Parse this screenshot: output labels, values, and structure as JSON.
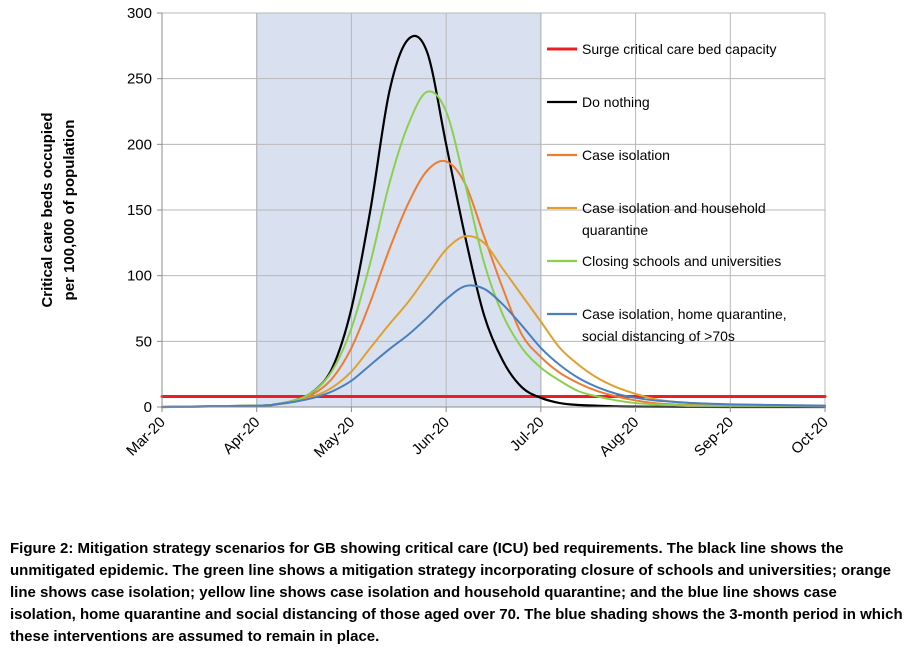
{
  "chart_data": {
    "type": "line",
    "title": "",
    "xlabel": "",
    "ylabel": [
      "Critical care beds occupied",
      "per 100,000 of population"
    ],
    "ylim": [
      0,
      300
    ],
    "yticks": [
      0,
      50,
      100,
      150,
      200,
      250,
      300
    ],
    "xlim": [
      0,
      7
    ],
    "categories": [
      "Mar-20",
      "Apr-20",
      "May-20",
      "Jun-20",
      "Jul-20",
      "Aug-20",
      "Sep-20",
      "Oct-20"
    ],
    "grid": true,
    "shaded_region": {
      "from": 1,
      "to": 4,
      "color": "#d9e1f0"
    },
    "series": [
      {
        "name": "Surge critical care bed capacity",
        "color": "#ee1c25",
        "width": 3,
        "x": [
          0,
          7
        ],
        "y": [
          8,
          8
        ]
      },
      {
        "name": "Do nothing",
        "color": "#000000",
        "width": 2.2,
        "x": [
          0,
          1,
          1.2,
          1.4,
          1.6,
          1.8,
          2.0,
          2.2,
          2.4,
          2.6,
          2.8,
          3.0,
          3.2,
          3.4,
          3.6,
          3.8,
          4.0,
          4.2,
          4.4,
          4.6,
          4.8,
          5.0,
          5.5,
          6.0,
          7.0
        ],
        "y": [
          0,
          1,
          2,
          5,
          12,
          30,
          75,
          150,
          240,
          280,
          270,
          200,
          130,
          70,
          35,
          15,
          7,
          3,
          1.5,
          1,
          0.5,
          0.3,
          0.1,
          0,
          0
        ]
      },
      {
        "name": "Case isolation",
        "color": "#ed7d31",
        "width": 2,
        "x": [
          0,
          1,
          1.2,
          1.4,
          1.6,
          1.8,
          2.0,
          2.2,
          2.4,
          2.6,
          2.8,
          3.0,
          3.2,
          3.4,
          3.6,
          3.8,
          4.0,
          4.2,
          4.4,
          4.6,
          4.8,
          5.0,
          5.2,
          5.4,
          5.6,
          5.8,
          6.0,
          6.5,
          7.0
        ],
        "y": [
          0,
          1,
          2,
          5,
          10,
          22,
          45,
          80,
          120,
          155,
          180,
          187,
          170,
          130,
          90,
          55,
          38,
          26,
          18,
          12,
          8,
          5,
          3,
          2,
          1.5,
          1,
          1,
          0.5,
          0.3
        ]
      },
      {
        "name": "Case isolation and household quarantine",
        "color": "#e0a030",
        "width": 2,
        "x": [
          0,
          1,
          1.2,
          1.4,
          1.6,
          1.8,
          2.0,
          2.2,
          2.4,
          2.6,
          2.8,
          3.0,
          3.2,
          3.4,
          3.6,
          3.8,
          4.0,
          4.2,
          4.4,
          4.6,
          4.8,
          5.0,
          5.2,
          5.4,
          5.6,
          5.8,
          6.0,
          6.5,
          7.0
        ],
        "y": [
          0,
          1,
          2,
          4,
          8,
          15,
          27,
          45,
          63,
          80,
          100,
          120,
          130,
          125,
          105,
          85,
          65,
          45,
          32,
          22,
          15,
          10,
          6,
          4,
          3,
          2,
          1.5,
          1,
          0.5
        ]
      },
      {
        "name": "Closing schools and universities",
        "color": "#8ccf4f",
        "width": 2,
        "x": [
          0,
          1,
          1.2,
          1.4,
          1.6,
          1.8,
          2.0,
          2.2,
          2.4,
          2.6,
          2.8,
          3.0,
          3.2,
          3.4,
          3.6,
          3.8,
          4.0,
          4.2,
          4.4,
          4.6,
          4.8,
          5.0,
          5.2,
          5.4,
          5.6,
          5.8,
          6.0,
          6.5,
          7.0
        ],
        "y": [
          0,
          1,
          2,
          5,
          12,
          28,
          60,
          110,
          170,
          215,
          240,
          225,
          170,
          110,
          70,
          45,
          30,
          20,
          12,
          8,
          5,
          3,
          2,
          1.5,
          1,
          1,
          1,
          0.5,
          0.3
        ]
      },
      {
        "name": "Case isolation, home quarantine, social distancing of >70s",
        "color": "#4a7fbe",
        "width": 2,
        "x": [
          0,
          1,
          1.2,
          1.4,
          1.6,
          1.8,
          2.0,
          2.2,
          2.4,
          2.6,
          2.8,
          3.0,
          3.2,
          3.4,
          3.6,
          3.8,
          4.0,
          4.2,
          4.4,
          4.6,
          4.8,
          5.0,
          5.2,
          5.4,
          5.6,
          5.8,
          6.0,
          6.5,
          7.0
        ],
        "y": [
          0,
          1,
          2,
          4,
          7,
          12,
          20,
          32,
          44,
          55,
          68,
          82,
          92,
          90,
          78,
          62,
          45,
          32,
          22,
          15,
          10,
          7,
          5,
          4,
          3,
          2.5,
          2,
          1.5,
          1
        ]
      }
    ],
    "legend": {
      "placement": "right",
      "entries": [
        [
          "Surge critical care bed capacity"
        ],
        [
          "Do nothing"
        ],
        [
          "Case isolation"
        ],
        [
          "Case isolation and household",
          "quarantine"
        ],
        [
          "Closing schools and universities"
        ],
        [
          "Case isolation, home quarantine,",
          "social distancing of >70s"
        ]
      ]
    }
  },
  "caption": "Figure 2: Mitigation strategy scenarios for GB showing critical care (ICU) bed requirements. The black line shows the unmitigated epidemic. The green line shows a mitigation strategy incorporating closure of schools and universities; orange line shows case isolation; yellow line shows case isolation and household quarantine; and the blue line shows case isolation, home quarantine and social distancing of those aged over 70. The blue shading shows the 3-month period in which these interventions are assumed to remain in place."
}
